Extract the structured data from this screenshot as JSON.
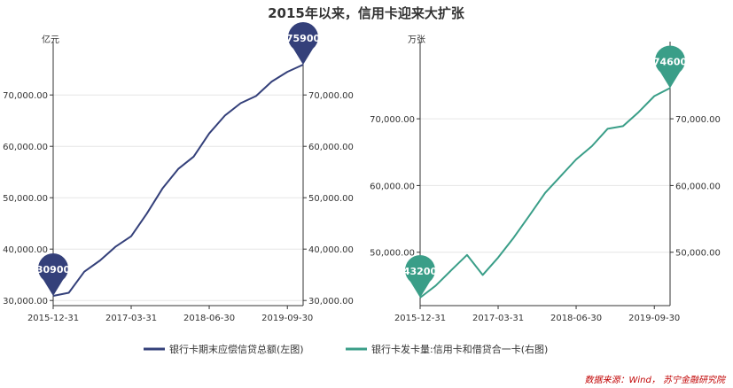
{
  "title": "2015年以来，信用卡迎来大扩张",
  "source": "数据来源：Wind， 苏宁金融研究院",
  "colors": {
    "left_series": "#34407a",
    "right_series": "#3a9e88",
    "axis": "#333333",
    "grid": "#e6e6e6"
  },
  "chart_data": [
    {
      "type": "line",
      "unit_label": "亿元",
      "x_ticks": [
        "2015-12-31",
        "2017-03-31",
        "2018-06-30",
        "2019-09-30"
      ],
      "y_ticks": [
        "30,000.00",
        "40,000.00",
        "50,000.00",
        "60,000.00",
        "70,000.00"
      ],
      "right_y_ticks": [
        "30,000.00",
        "40,000.00",
        "50,000.00",
        "60,000.00",
        "70,000.00"
      ],
      "ylim": [
        29000,
        79000
      ],
      "x_range": [
        "2015-12-31",
        "2019-12-31"
      ],
      "grid": true,
      "series": [
        {
          "name": "银行卡期末应偿信贷总额(左图)",
          "x": [
            "2015-12-31",
            "2016-03-31",
            "2016-06-30",
            "2016-09-30",
            "2016-12-31",
            "2017-03-31",
            "2017-06-30",
            "2017-09-30",
            "2017-12-31",
            "2018-03-31",
            "2018-06-30",
            "2018-09-30",
            "2018-12-31",
            "2019-03-31",
            "2019-06-30",
            "2019-09-30",
            "2019-12-31"
          ],
          "values": [
            30900,
            31500,
            35600,
            37800,
            40500,
            42500,
            46900,
            51800,
            55600,
            58000,
            62500,
            66000,
            68400,
            69800,
            72600,
            74500,
            75900
          ]
        }
      ],
      "markers": [
        {
          "x": "2015-12-31",
          "label": "30900",
          "value": 30900
        },
        {
          "x": "2019-12-31",
          "label": "75900",
          "value": 75900
        }
      ]
    },
    {
      "type": "line",
      "unit_label": "万张",
      "x_ticks": [
        "2015-12-31",
        "2017-03-31",
        "2018-06-30",
        "2019-09-30"
      ],
      "y_ticks": [
        "50,000.00",
        "60,000.00",
        "70,000.00"
      ],
      "right_y_ticks": [
        "50,000.00",
        "60,000.00",
        "70,000.00"
      ],
      "ylim": [
        42000,
        80500
      ],
      "x_range": [
        "2015-12-31",
        "2019-12-31"
      ],
      "grid": true,
      "series": [
        {
          "name": "银行卡发卡量:信用卡和借贷合一卡(右图)",
          "x": [
            "2015-12-31",
            "2016-03-31",
            "2016-06-30",
            "2016-09-30",
            "2016-12-31",
            "2017-03-31",
            "2017-06-30",
            "2017-09-30",
            "2017-12-31",
            "2018-03-31",
            "2018-06-30",
            "2018-09-30",
            "2018-12-31",
            "2019-03-31",
            "2019-06-30",
            "2019-09-30",
            "2019-12-31"
          ],
          "values": [
            43200,
            45000,
            47300,
            49600,
            46600,
            49200,
            52200,
            55500,
            58900,
            61400,
            63900,
            65900,
            68500,
            68900,
            71000,
            73400,
            74600
          ]
        }
      ],
      "markers": [
        {
          "x": "2015-12-31",
          "label": "43200",
          "value": 43200
        },
        {
          "x": "2019-12-31",
          "label": "74600",
          "value": 74600
        }
      ]
    }
  ]
}
